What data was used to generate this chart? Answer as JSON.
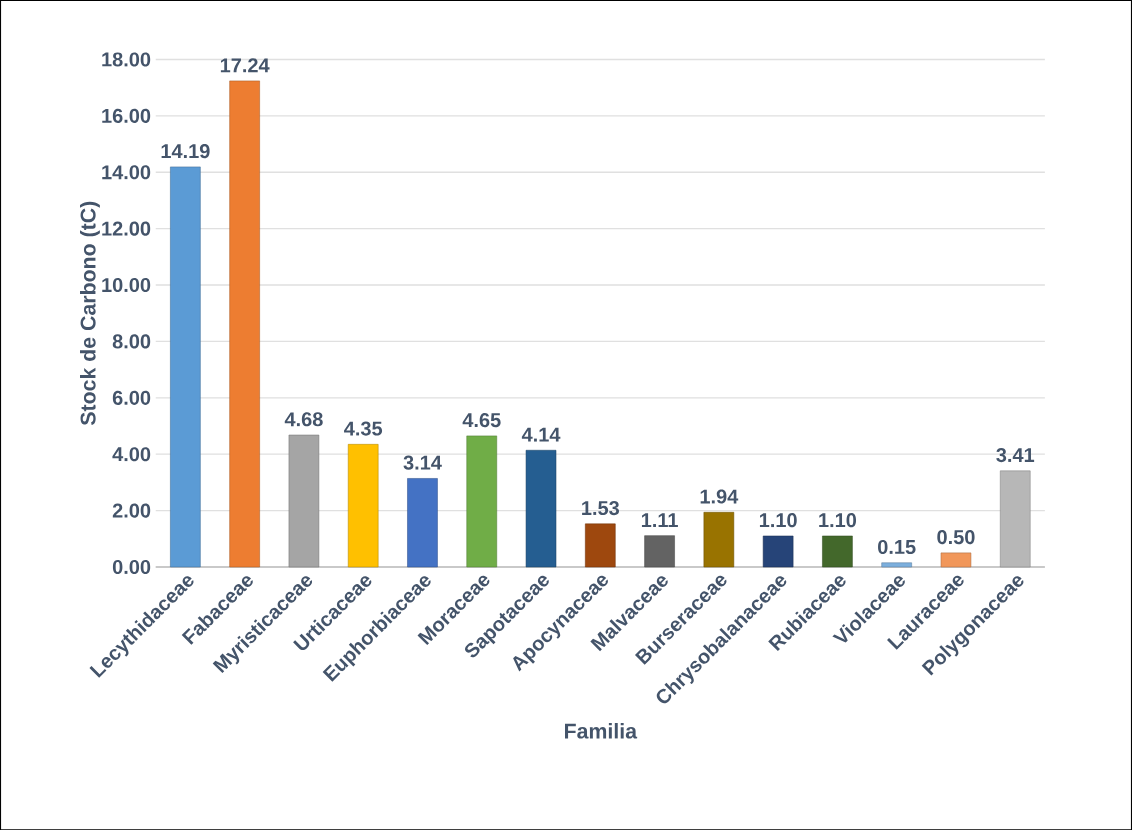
{
  "chart_data": {
    "type": "bar",
    "xlabel": "Familia",
    "ylabel": "Stock de Carbono (tC)",
    "categories": [
      "Lecythidaceae",
      "Fabaceae",
      "Myristicaceae",
      "Urticaceae",
      "Euphorbiaceae",
      "Moraceae",
      "Sapotaceae",
      "Apocynaceae",
      "Malvaceae",
      "Burseraceae",
      "Chrysobalanaceae",
      "Rubiaceae",
      "Violaceae",
      "Lauraceae",
      "Polygonaceae"
    ],
    "values": [
      14.19,
      17.24,
      4.68,
      4.35,
      3.14,
      4.65,
      4.14,
      1.53,
      1.11,
      1.94,
      1.1,
      1.1,
      0.15,
      0.5,
      3.41
    ],
    "colors": [
      "#5b9bd5",
      "#ed7d31",
      "#a5a5a5",
      "#ffc000",
      "#4472c4",
      "#70ad47",
      "#255e91",
      "#9e480e",
      "#636363",
      "#997300",
      "#264478",
      "#43682b",
      "#7cafdd",
      "#f1975a",
      "#b7b7b7"
    ],
    "ylim": [
      0,
      18
    ],
    "yticks": [
      {
        "value": 0,
        "label": "0.00"
      },
      {
        "value": 2,
        "label": "2.00"
      },
      {
        "value": 4,
        "label": "4.00"
      },
      {
        "value": 6,
        "label": "6.00"
      },
      {
        "value": 8,
        "label": "8.00"
      },
      {
        "value": 10,
        "label": "10.00"
      },
      {
        "value": 12,
        "label": "12.00"
      },
      {
        "value": 14,
        "label": "14.00"
      },
      {
        "value": 16,
        "label": "16.00"
      },
      {
        "value": 18,
        "label": "18.00"
      }
    ],
    "value_labels": [
      "14.19",
      "17.24",
      "4.68",
      "4.35",
      "3.14",
      "4.65",
      "4.14",
      "1.53",
      "1.11",
      "1.94",
      "1.10",
      "1.10",
      "0.15",
      "0.50",
      "3.41"
    ],
    "grid": "y"
  }
}
